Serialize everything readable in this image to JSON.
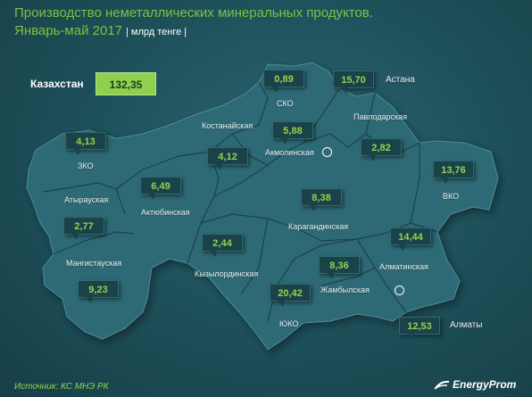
{
  "header": {
    "title_line1": "Производство неметаллических минеральных продуктов.",
    "title_line2": "Январь-май 2017",
    "unit": "| млрд тенге |"
  },
  "total": {
    "label": "Казахстан",
    "value": "132,35"
  },
  "regions": [
    {
      "id": "zko",
      "name": "ЗКО",
      "value": "4,13"
    },
    {
      "id": "atyrau",
      "name": "Атырауская",
      "value": "2,77"
    },
    {
      "id": "mangistau",
      "name": "Мангистауская",
      "value": "9,23"
    },
    {
      "id": "aktobe",
      "name": "Актюбинская",
      "value": "6,49"
    },
    {
      "id": "kostanay",
      "name": "Костанайская",
      "value": "4,12"
    },
    {
      "id": "sko",
      "name": "СКО",
      "value": "0,89"
    },
    {
      "id": "akmola",
      "name": "Акмолинская",
      "value": "5,88"
    },
    {
      "id": "astana",
      "name": "Астана",
      "value": "15,70"
    },
    {
      "id": "pavlodar",
      "name": "Павлодарская",
      "value": "2,82"
    },
    {
      "id": "vko",
      "name": "ВКО",
      "value": "13,76"
    },
    {
      "id": "karaganda",
      "name": "Карагандинская",
      "value": "8,38"
    },
    {
      "id": "kyzylorda",
      "name": "Кызылординская",
      "value": "2,44"
    },
    {
      "id": "yuko",
      "name": "ЮКО",
      "value": "20,42"
    },
    {
      "id": "zhambyl",
      "name": "Жамбылская",
      "value": "8,36"
    },
    {
      "id": "almaty_obl",
      "name": "Алматинская",
      "value": "14,44"
    },
    {
      "id": "almaty",
      "name": "Алматы",
      "value": "12,53"
    }
  ],
  "footer": {
    "source": "Источник: КС МНЭ РК",
    "logo": "EnergyProm"
  },
  "colors": {
    "accent": "#7cc243",
    "map_fill": "#2d6b76",
    "background": "#1f525c"
  }
}
